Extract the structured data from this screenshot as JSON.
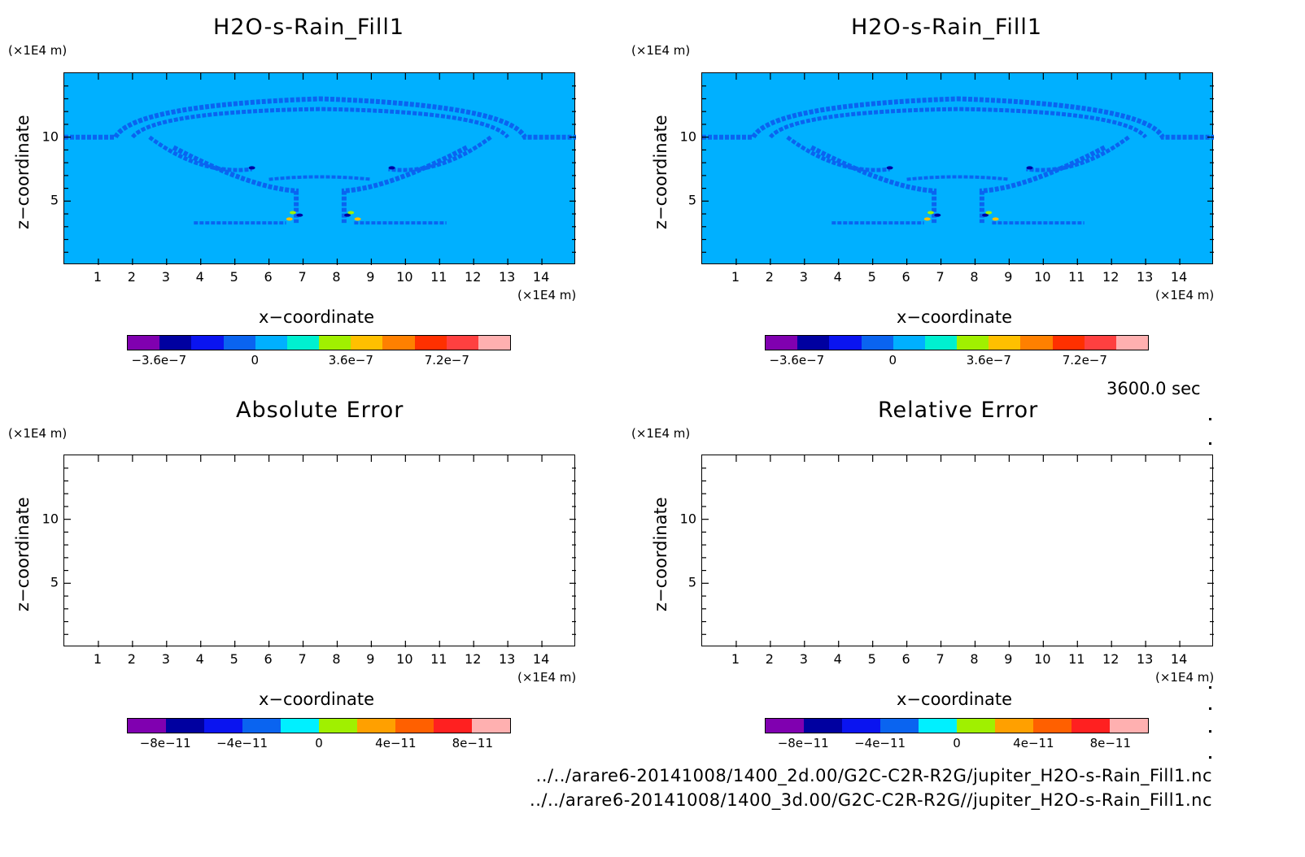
{
  "panels": [
    {
      "title": "H2O-s-Rain_Fill1",
      "zunit": "(×1E4 m)",
      "xunit": "(×1E4 m)",
      "xlabel": "x−coordinate",
      "ylabel": "z−coordinate",
      "colorbar_ticks": [
        "−3.6e−7",
        "0",
        "3.6e−7",
        "7.2e−7"
      ]
    },
    {
      "title": "H2O-s-Rain_Fill1",
      "zunit": "(×1E4 m)",
      "xunit": "(×1E4 m)",
      "xlabel": "x−coordinate",
      "ylabel": "z−coordinate",
      "colorbar_ticks": [
        "−3.6e−7",
        "0",
        "3.6e−7",
        "7.2e−7"
      ]
    },
    {
      "title": "Absolute Error",
      "zunit": "(×1E4 m)",
      "xunit": "(×1E4 m)",
      "xlabel": "x−coordinate",
      "ylabel": "z−coordinate",
      "colorbar_ticks": [
        "−8e−11",
        "−4e−11",
        "0",
        "4e−11",
        "8e−11"
      ]
    },
    {
      "title": "Relative Error",
      "zunit": "(×1E4 m)",
      "xunit": "(×1E4 m)",
      "xlabel": "x−coordinate",
      "ylabel": "z−coordinate",
      "colorbar_ticks": [
        "−8e−11",
        "−4e−11",
        "0",
        "4e−11",
        "8e−11"
      ]
    }
  ],
  "time_label": "3600.0 sec",
  "file_paths": [
    "../../arare6-20141008/1400_2d.00/G2C-C2R-R2G/jupiter_H2O-s-Rain_Fill1.nc",
    "../../arare6-20141008/1400_3d.00/G2C-C2R-R2G//jupiter_H2O-s-Rain_Fill1.nc"
  ],
  "chart_data": [
    {
      "type": "heatmap",
      "title": "H2O-s-Rain_Fill1",
      "xlabel": "x−coordinate",
      "ylabel": "z−coordinate",
      "x_unit": "×1E4 m",
      "y_unit": "×1E4 m",
      "xlim": [
        0,
        15
      ],
      "ylim": [
        0,
        15
      ],
      "x_ticks": [
        "1",
        "2",
        "3",
        "4",
        "5",
        "6",
        "7",
        "8",
        "9",
        "10",
        "11",
        "12",
        "13",
        "14"
      ],
      "y_ticks": [
        "5",
        "10"
      ],
      "colorbar_colors": [
        "#8000b0",
        "#0000a0",
        "#0a14f0",
        "#0a64f0",
        "#00b0ff",
        "#00f0d0",
        "#a0f000",
        "#ffc000",
        "#ff8000",
        "#ff3000",
        "#ff4040",
        "#ffb0b0"
      ],
      "colorbar_ticks": [
        "−3.6e−7",
        "0",
        "3.6e−7",
        "7.2e−7"
      ],
      "background_color": "#00b0ff",
      "feature_color": "#0a64f0"
    },
    {
      "type": "heatmap",
      "title": "H2O-s-Rain_Fill1",
      "xlabel": "x−coordinate",
      "ylabel": "z−coordinate",
      "x_unit": "×1E4 m",
      "y_unit": "×1E4 m",
      "xlim": [
        0,
        15
      ],
      "ylim": [
        0,
        15
      ],
      "x_ticks": [
        "1",
        "2",
        "3",
        "4",
        "5",
        "6",
        "7",
        "8",
        "9",
        "10",
        "11",
        "12",
        "13",
        "14"
      ],
      "y_ticks": [
        "5",
        "10"
      ],
      "colorbar_colors": [
        "#8000b0",
        "#0000a0",
        "#0a14f0",
        "#0a64f0",
        "#00b0ff",
        "#00f0d0",
        "#a0f000",
        "#ffc000",
        "#ff8000",
        "#ff3000",
        "#ff4040",
        "#ffb0b0"
      ],
      "colorbar_ticks": [
        "−3.6e−7",
        "0",
        "3.6e−7",
        "7.2e−7"
      ],
      "background_color": "#00b0ff",
      "feature_color": "#0a64f0"
    },
    {
      "type": "heatmap",
      "title": "Absolute Error",
      "xlabel": "x−coordinate",
      "ylabel": "z−coordinate",
      "x_unit": "×1E4 m",
      "y_unit": "×1E4 m",
      "xlim": [
        0,
        15
      ],
      "ylim": [
        0,
        15
      ],
      "x_ticks": [
        "1",
        "2",
        "3",
        "4",
        "5",
        "6",
        "7",
        "8",
        "9",
        "10",
        "11",
        "12",
        "13",
        "14"
      ],
      "y_ticks": [
        "5",
        "10"
      ],
      "colorbar_colors": [
        "#8000b0",
        "#0000a0",
        "#0a14f0",
        "#0a64f0",
        "#00f0ff",
        "#a0f000",
        "#ffa000",
        "#ff6000",
        "#ff2020",
        "#ffb0b0"
      ],
      "colorbar_ticks": [
        "−8e−11",
        "−4e−11",
        "0",
        "4e−11",
        "8e−11"
      ],
      "background_color": "#ffffff"
    },
    {
      "type": "heatmap",
      "title": "Relative Error",
      "xlabel": "x−coordinate",
      "ylabel": "z−coordinate",
      "x_unit": "×1E4 m",
      "y_unit": "×1E4 m",
      "xlim": [
        0,
        15
      ],
      "ylim": [
        0,
        15
      ],
      "x_ticks": [
        "1",
        "2",
        "3",
        "4",
        "5",
        "6",
        "7",
        "8",
        "9",
        "10",
        "11",
        "12",
        "13",
        "14"
      ],
      "y_ticks": [
        "5",
        "10"
      ],
      "colorbar_colors": [
        "#8000b0",
        "#0000a0",
        "#0a14f0",
        "#0a64f0",
        "#00f0ff",
        "#a0f000",
        "#ffa000",
        "#ff6000",
        "#ff2020",
        "#ffb0b0"
      ],
      "colorbar_ticks": [
        "−8e−11",
        "−4e−11",
        "0",
        "4e−11",
        "8e−11"
      ],
      "background_color": "#ffffff"
    }
  ]
}
